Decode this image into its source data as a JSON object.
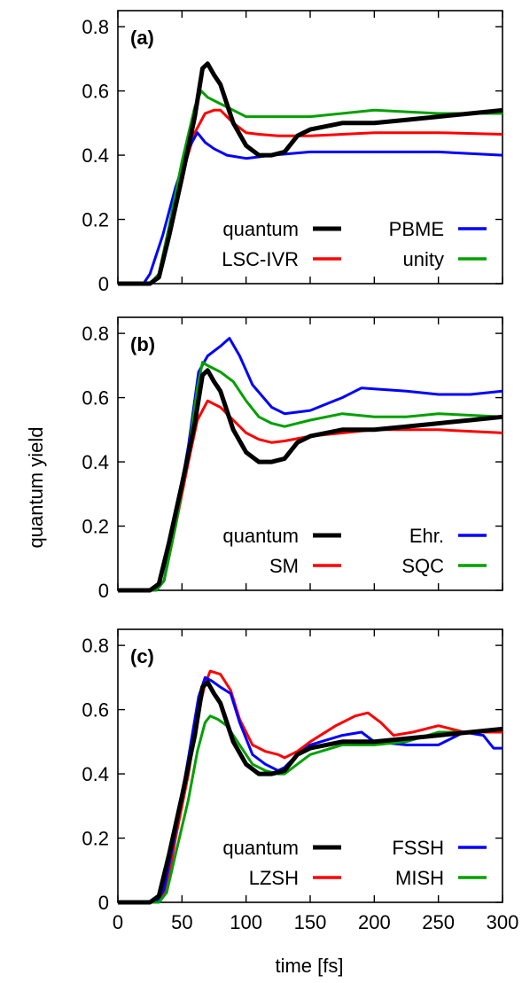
{
  "figure": {
    "ylabel": "quantum yield",
    "xlabel": "time [fs]",
    "x_ticks": [
      "0",
      "50",
      "100",
      "150",
      "200",
      "250",
      "300"
    ],
    "y_ticks": [
      "0",
      "0.2",
      "0.4",
      "0.6",
      "0.8"
    ]
  },
  "chart_data": [
    {
      "type": "line",
      "panel_label": "(a)",
      "xlim": [
        0,
        300
      ],
      "ylim": [
        0,
        0.85
      ],
      "grid": false,
      "legend_placement": "bottom-right",
      "series": [
        {
          "name": "quantum",
          "color": "#000000",
          "x": [
            0,
            25,
            32,
            40,
            50,
            60,
            66,
            70,
            75,
            80,
            90,
            100,
            110,
            120,
            130,
            140,
            150,
            175,
            200,
            225,
            250,
            275,
            300
          ],
          "y": [
            0,
            0,
            0.02,
            0.15,
            0.33,
            0.52,
            0.67,
            0.685,
            0.65,
            0.62,
            0.5,
            0.43,
            0.4,
            0.4,
            0.41,
            0.46,
            0.48,
            0.5,
            0.5,
            0.51,
            0.52,
            0.53,
            0.54
          ]
        },
        {
          "name": "LSC-IVR",
          "color": "#ff0000",
          "x": [
            0,
            25,
            32,
            40,
            50,
            60,
            68,
            75,
            80,
            90,
            100,
            110,
            125,
            150,
            200,
            250,
            300
          ],
          "y": [
            0,
            0,
            0.03,
            0.17,
            0.34,
            0.47,
            0.53,
            0.54,
            0.54,
            0.5,
            0.47,
            0.465,
            0.46,
            0.46,
            0.47,
            0.47,
            0.465
          ]
        },
        {
          "name": "PBME",
          "color": "#0000ff",
          "x": [
            0,
            20,
            25,
            35,
            45,
            55,
            62,
            68,
            75,
            85,
            100,
            120,
            150,
            200,
            250,
            300
          ],
          "y": [
            0,
            0,
            0.03,
            0.15,
            0.3,
            0.42,
            0.47,
            0.44,
            0.42,
            0.4,
            0.39,
            0.4,
            0.41,
            0.41,
            0.41,
            0.4
          ]
        },
        {
          "name": "unity",
          "color": "#00a000",
          "x": [
            0,
            25,
            32,
            40,
            50,
            60,
            65,
            70,
            80,
            90,
            100,
            150,
            200,
            250,
            300
          ],
          "y": [
            0,
            0,
            0.03,
            0.18,
            0.38,
            0.55,
            0.6,
            0.58,
            0.56,
            0.54,
            0.52,
            0.52,
            0.54,
            0.53,
            0.53
          ]
        }
      ]
    },
    {
      "type": "line",
      "panel_label": "(b)",
      "xlim": [
        0,
        300
      ],
      "ylim": [
        0,
        0.85
      ],
      "grid": false,
      "legend_placement": "bottom-right",
      "series": [
        {
          "name": "quantum",
          "color": "#000000",
          "x": [
            0,
            25,
            32,
            40,
            50,
            60,
            66,
            70,
            75,
            80,
            90,
            100,
            110,
            120,
            130,
            140,
            150,
            175,
            200,
            225,
            250,
            275,
            300
          ],
          "y": [
            0,
            0,
            0.02,
            0.15,
            0.33,
            0.52,
            0.67,
            0.685,
            0.65,
            0.62,
            0.5,
            0.43,
            0.4,
            0.4,
            0.41,
            0.46,
            0.48,
            0.5,
            0.5,
            0.51,
            0.52,
            0.53,
            0.54
          ]
        },
        {
          "name": "SM",
          "color": "#ff0000",
          "x": [
            0,
            30,
            36,
            45,
            55,
            62,
            70,
            80,
            90,
            100,
            110,
            120,
            130,
            150,
            200,
            250,
            300
          ],
          "y": [
            0,
            0,
            0.03,
            0.2,
            0.4,
            0.53,
            0.59,
            0.57,
            0.53,
            0.49,
            0.47,
            0.46,
            0.465,
            0.48,
            0.5,
            0.5,
            0.49
          ]
        },
        {
          "name": "Ehr.",
          "color": "#0000ff",
          "x": [
            0,
            30,
            36,
            45,
            55,
            63,
            70,
            80,
            87,
            95,
            105,
            120,
            130,
            150,
            175,
            190,
            225,
            250,
            275,
            300
          ],
          "y": [
            0,
            0,
            0.03,
            0.22,
            0.45,
            0.68,
            0.73,
            0.76,
            0.785,
            0.73,
            0.64,
            0.57,
            0.55,
            0.56,
            0.6,
            0.63,
            0.62,
            0.61,
            0.61,
            0.62
          ]
        },
        {
          "name": "SQC",
          "color": "#00a000",
          "x": [
            0,
            30,
            36,
            45,
            55,
            62,
            66,
            70,
            80,
            90,
            100,
            110,
            120,
            130,
            150,
            175,
            200,
            225,
            250,
            300
          ],
          "y": [
            0,
            0,
            0.03,
            0.2,
            0.43,
            0.63,
            0.71,
            0.7,
            0.68,
            0.65,
            0.59,
            0.54,
            0.52,
            0.51,
            0.53,
            0.55,
            0.54,
            0.54,
            0.55,
            0.54
          ]
        }
      ]
    },
    {
      "type": "line",
      "panel_label": "(c)",
      "xlim": [
        0,
        300
      ],
      "ylim": [
        0,
        0.85
      ],
      "grid": false,
      "legend_placement": "bottom-right",
      "series": [
        {
          "name": "quantum",
          "color": "#000000",
          "x": [
            0,
            25,
            32,
            40,
            50,
            60,
            66,
            70,
            75,
            80,
            90,
            100,
            110,
            120,
            130,
            140,
            150,
            175,
            200,
            225,
            250,
            275,
            300
          ],
          "y": [
            0,
            0,
            0.02,
            0.15,
            0.33,
            0.52,
            0.67,
            0.685,
            0.65,
            0.62,
            0.5,
            0.43,
            0.4,
            0.4,
            0.41,
            0.46,
            0.48,
            0.5,
            0.5,
            0.51,
            0.52,
            0.53,
            0.54
          ]
        },
        {
          "name": "LZSH",
          "color": "#ff0000",
          "x": [
            0,
            32,
            38,
            45,
            55,
            62,
            68,
            72,
            80,
            88,
            95,
            105,
            115,
            125,
            130,
            140,
            150,
            170,
            185,
            195,
            205,
            215,
            230,
            250,
            270,
            285,
            300
          ],
          "y": [
            0,
            0,
            0.04,
            0.2,
            0.4,
            0.58,
            0.68,
            0.72,
            0.71,
            0.66,
            0.57,
            0.49,
            0.47,
            0.46,
            0.45,
            0.47,
            0.5,
            0.55,
            0.58,
            0.59,
            0.56,
            0.52,
            0.53,
            0.55,
            0.53,
            0.53,
            0.53
          ]
        },
        {
          "name": "FSSH",
          "color": "#0000ff",
          "x": [
            0,
            30,
            36,
            45,
            55,
            63,
            68,
            73,
            80,
            88,
            95,
            105,
            115,
            125,
            130,
            140,
            150,
            175,
            190,
            200,
            225,
            250,
            270,
            285,
            293,
            300
          ],
          "y": [
            0,
            0,
            0.04,
            0.22,
            0.45,
            0.64,
            0.7,
            0.69,
            0.67,
            0.65,
            0.56,
            0.46,
            0.43,
            0.41,
            0.42,
            0.46,
            0.49,
            0.52,
            0.53,
            0.5,
            0.49,
            0.49,
            0.53,
            0.52,
            0.48,
            0.48
          ]
        },
        {
          "name": "MISH",
          "color": "#00a000",
          "x": [
            0,
            32,
            38,
            45,
            55,
            62,
            68,
            72,
            78,
            85,
            95,
            105,
            115,
            125,
            130,
            140,
            150,
            175,
            200,
            225,
            250,
            275,
            300
          ],
          "y": [
            0,
            0,
            0.03,
            0.15,
            0.32,
            0.47,
            0.56,
            0.58,
            0.57,
            0.55,
            0.49,
            0.43,
            0.41,
            0.4,
            0.4,
            0.43,
            0.46,
            0.49,
            0.49,
            0.5,
            0.53,
            0.53,
            0.54
          ]
        }
      ]
    }
  ]
}
